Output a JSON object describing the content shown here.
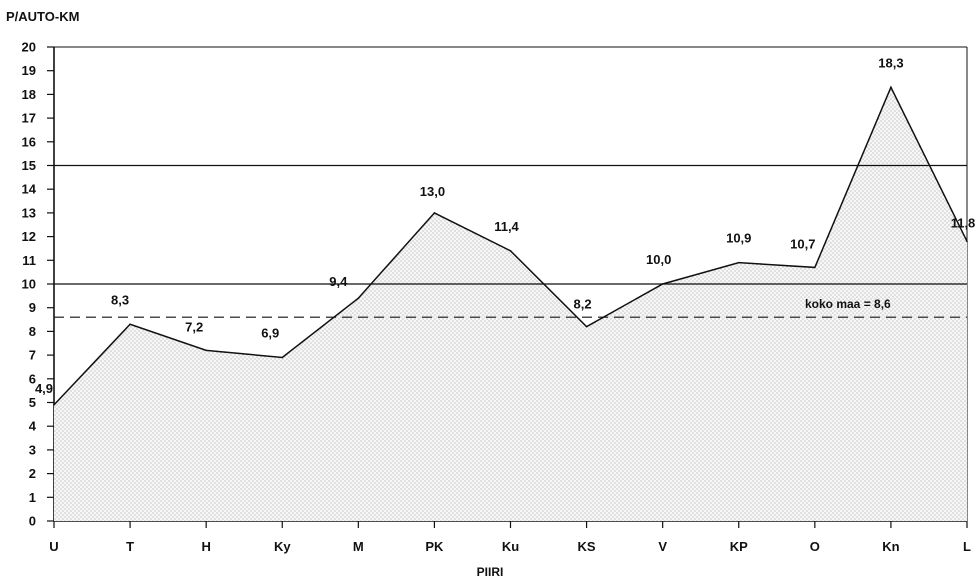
{
  "chart_data": {
    "type": "area",
    "ylabel": "P/AUTO-KM",
    "xlabel": "PIIRI",
    "categories": [
      "U",
      "T",
      "H",
      "Ky",
      "M",
      "PK",
      "Ku",
      "KS",
      "V",
      "KP",
      "O",
      "Kn",
      "L"
    ],
    "series": [
      {
        "values": [
          4.9,
          8.3,
          7.2,
          6.9,
          9.4,
          13.0,
          11.4,
          8.2,
          10.0,
          10.9,
          10.7,
          18.3,
          11.8
        ],
        "value_labels": [
          "4,9",
          "8,3",
          "7,2",
          "6,9",
          "9,4",
          "13,0",
          "11,4",
          "8,2",
          "10,0",
          "10,9",
          "10,7",
          "18,3",
          "11,8"
        ]
      }
    ],
    "ylim": [
      0,
      20
    ],
    "yticks": [
      "0",
      "1",
      "2",
      "3",
      "4",
      "5",
      "6",
      "7",
      "8",
      "9",
      "10",
      "11",
      "12",
      "13",
      "14",
      "15",
      "16",
      "17",
      "18",
      "19",
      "20"
    ],
    "horizontal_lines": [
      10,
      15
    ],
    "reference_line": {
      "value": 8.6,
      "label": "koko maa = 8,6",
      "style": "dashed"
    },
    "fill_pattern": "stippled",
    "grid": false,
    "legend": "none"
  }
}
